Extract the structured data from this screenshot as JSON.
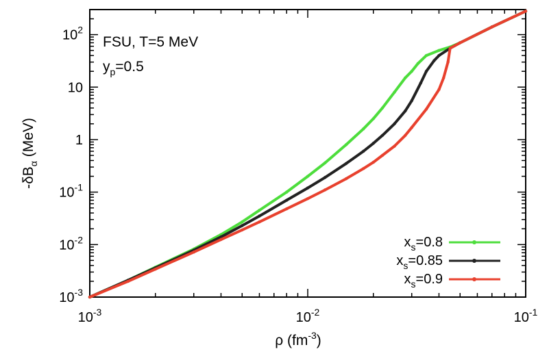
{
  "chart_data": {
    "type": "line",
    "x_scale": "log",
    "y_scale": "log",
    "xlim": [
      0.001,
      0.1
    ],
    "ylim": [
      0.001,
      300
    ],
    "xlabel": {
      "base": "ρ (fm",
      "sup": "-3",
      "tail": ")"
    },
    "ylabel": {
      "base": "-δB",
      "sub": "α",
      "tail": " (MeV)"
    },
    "x_ticks": [
      {
        "value": 0.001,
        "base": "10",
        "sup": "-3"
      },
      {
        "value": 0.01,
        "base": "10",
        "sup": "-2"
      },
      {
        "value": 0.1,
        "base": "10",
        "sup": "-1"
      }
    ],
    "y_ticks": [
      {
        "value": 0.001,
        "base": "10",
        "sup": "-3"
      },
      {
        "value": 0.01,
        "base": "10",
        "sup": "-2"
      },
      {
        "value": 0.1,
        "base": "10",
        "sup": "-1"
      },
      {
        "value": 1,
        "base": "1",
        "sup": ""
      },
      {
        "value": 10,
        "base": "10",
        "sup": ""
      },
      {
        "value": 100,
        "base": "10",
        "sup": "2"
      }
    ],
    "annotations": {
      "line1": "FSU, T=5 MeV",
      "line2_base": "y",
      "line2_sub": "p",
      "line2_tail": "=0.5"
    },
    "legend_position": "bottom-right",
    "grid": false,
    "series": [
      {
        "name": "x_s=0.8",
        "legend": {
          "base": "x",
          "sub": "s",
          "tail": "=0.8"
        },
        "color": "#4ddd3c",
        "x": [
          0.001,
          0.0015,
          0.002,
          0.003,
          0.004,
          0.005,
          0.006,
          0.008,
          0.01,
          0.012,
          0.015,
          0.018,
          0.02,
          0.022,
          0.025,
          0.028,
          0.03,
          0.032,
          0.035,
          0.04,
          0.045,
          0.05,
          0.07,
          0.1
        ],
        "y": [
          0.001,
          0.0021,
          0.0037,
          0.0082,
          0.0155,
          0.027,
          0.045,
          0.1,
          0.2,
          0.36,
          0.8,
          1.6,
          2.5,
          4.0,
          8.0,
          15,
          20,
          28,
          40,
          50,
          58,
          70,
          140,
          280
        ]
      },
      {
        "name": "x_s=0.85",
        "legend": {
          "base": "x",
          "sub": "s",
          "tail": "=0.85"
        },
        "color": "#222222",
        "x": [
          0.001,
          0.0015,
          0.002,
          0.003,
          0.004,
          0.005,
          0.006,
          0.008,
          0.01,
          0.012,
          0.015,
          0.018,
          0.02,
          0.022,
          0.025,
          0.028,
          0.03,
          0.033,
          0.035,
          0.038,
          0.04,
          0.045,
          0.05,
          0.07,
          0.1
        ],
        "y": [
          0.001,
          0.0021,
          0.0036,
          0.0078,
          0.014,
          0.023,
          0.035,
          0.07,
          0.12,
          0.19,
          0.35,
          0.6,
          0.85,
          1.2,
          2.0,
          3.5,
          5.5,
          12,
          20,
          32,
          40,
          55,
          70,
          140,
          280
        ]
      },
      {
        "name": "x_s=0.9",
        "legend": {
          "base": "x",
          "sub": "s",
          "tail": "=0.9"
        },
        "color": "#e8412e",
        "x": [
          0.001,
          0.0015,
          0.002,
          0.003,
          0.004,
          0.005,
          0.006,
          0.008,
          0.01,
          0.012,
          0.015,
          0.018,
          0.02,
          0.022,
          0.025,
          0.028,
          0.03,
          0.035,
          0.04,
          0.042,
          0.044,
          0.045,
          0.05,
          0.07,
          0.1
        ],
        "y": [
          0.001,
          0.002,
          0.0034,
          0.0072,
          0.0125,
          0.019,
          0.027,
          0.048,
          0.075,
          0.11,
          0.18,
          0.28,
          0.37,
          0.5,
          0.75,
          1.2,
          1.7,
          3.8,
          9.0,
          15,
          30,
          55,
          70,
          140,
          280
        ]
      }
    ]
  }
}
